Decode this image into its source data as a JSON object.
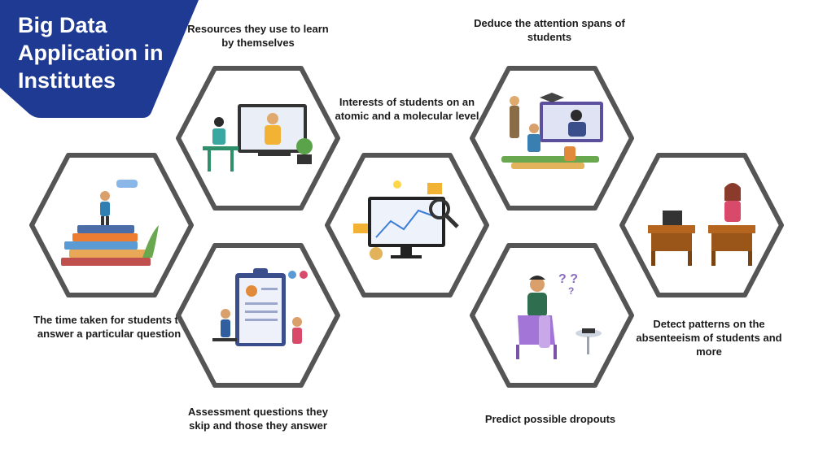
{
  "title": "Big Data Application in Institutes",
  "colors": {
    "banner": "#1f3a93",
    "hex_stroke": "#555555",
    "text": "#1b1b1b"
  },
  "items": [
    {
      "caption": "Resources they use to learn by themselves",
      "icon": "online-class-icon"
    },
    {
      "caption": "Deduce the attention spans of students",
      "icon": "video-lecture-icon"
    },
    {
      "caption": "Interests of students on an atomic and a molecular level",
      "icon": "data-analysis-icon"
    },
    {
      "caption": "The time taken for students to answer a particular question",
      "icon": "books-stack-icon"
    },
    {
      "caption": "Detect patterns on the absenteeism of students and more",
      "icon": "classroom-desks-icon"
    },
    {
      "caption": "Assessment questions they skip and those they answer",
      "icon": "assessment-board-icon"
    },
    {
      "caption": "Predict possible dropouts",
      "icon": "thinking-student-icon"
    }
  ]
}
